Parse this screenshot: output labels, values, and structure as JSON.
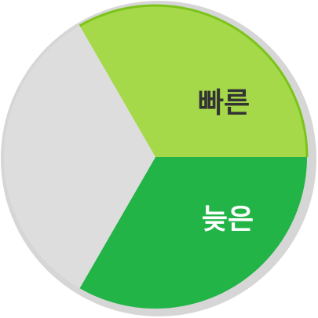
{
  "chart_data": {
    "type": "pie",
    "categories": [
      "빠른",
      "늦은",
      ""
    ],
    "values": [
      1,
      1,
      1
    ],
    "colors": [
      "#a6d94a",
      "#22b446",
      "#dddddd"
    ],
    "label_colors": [
      "#333333",
      "#ffffff",
      ""
    ],
    "ring_color": "#d6d6d6",
    "edge_color": "#7cc31a"
  }
}
